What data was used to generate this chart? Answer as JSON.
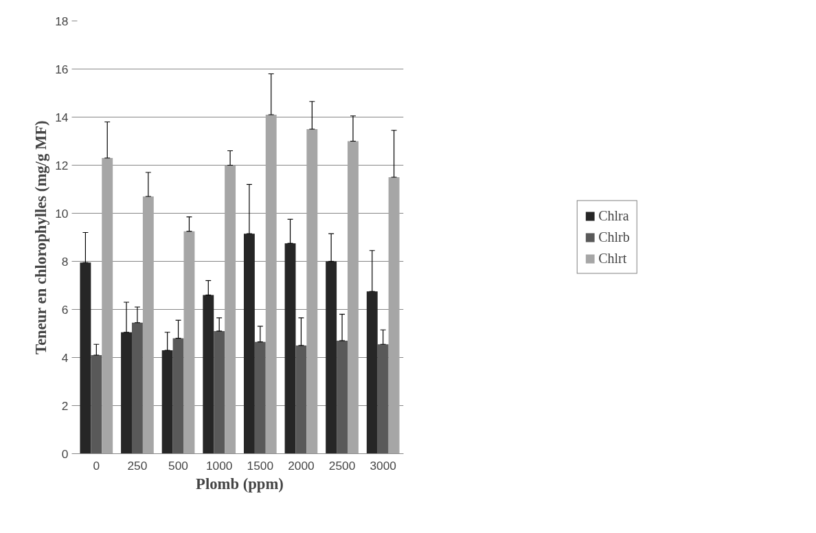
{
  "chart_data": {
    "type": "bar",
    "xlabel": "Plomb (ppm)",
    "ylabel": "Teneur en chlorophylles (mg/g MF)",
    "categories": [
      "0",
      "250",
      "500",
      "1000",
      "1500",
      "2000",
      "2500",
      "3000"
    ],
    "ylim": [
      0,
      18
    ],
    "yticks": [
      0,
      2,
      4,
      6,
      8,
      10,
      12,
      14,
      16,
      18
    ],
    "grid": "y",
    "legend": "right",
    "series": [
      {
        "name": "Chlra",
        "color": "#262626",
        "values": [
          7.95,
          5.05,
          4.3,
          6.6,
          9.15,
          8.75,
          8.0,
          6.75
        ],
        "errors": [
          [
            7.95,
            9.2
          ],
          [
            5.05,
            6.3
          ],
          [
            4.3,
            5.05
          ],
          [
            6.6,
            7.2
          ],
          [
            9.15,
            11.2
          ],
          [
            8.75,
            9.75
          ],
          [
            8.0,
            9.15
          ],
          [
            6.75,
            8.45
          ]
        ]
      },
      {
        "name": "Chlrb",
        "color": "#595959",
        "values": [
          4.1,
          5.45,
          4.8,
          5.1,
          4.65,
          4.5,
          4.7,
          4.55
        ],
        "errors": [
          [
            4.1,
            4.55
          ],
          [
            5.45,
            6.1
          ],
          [
            4.8,
            5.55
          ],
          [
            5.1,
            5.65
          ],
          [
            4.65,
            5.3
          ],
          [
            4.5,
            5.65
          ],
          [
            4.7,
            5.8
          ],
          [
            4.55,
            5.15
          ]
        ]
      },
      {
        "name": "Chlrt",
        "color": "#a6a6a6",
        "values": [
          12.3,
          10.7,
          9.25,
          12.0,
          14.1,
          13.5,
          13.0,
          11.5
        ],
        "errors": [
          [
            12.3,
            13.8
          ],
          [
            10.7,
            11.7
          ],
          [
            9.25,
            9.85
          ],
          [
            12.0,
            12.6
          ],
          [
            14.1,
            15.8
          ],
          [
            13.5,
            14.65
          ],
          [
            13.0,
            14.05
          ],
          [
            11.5,
            13.45
          ]
        ]
      }
    ]
  }
}
